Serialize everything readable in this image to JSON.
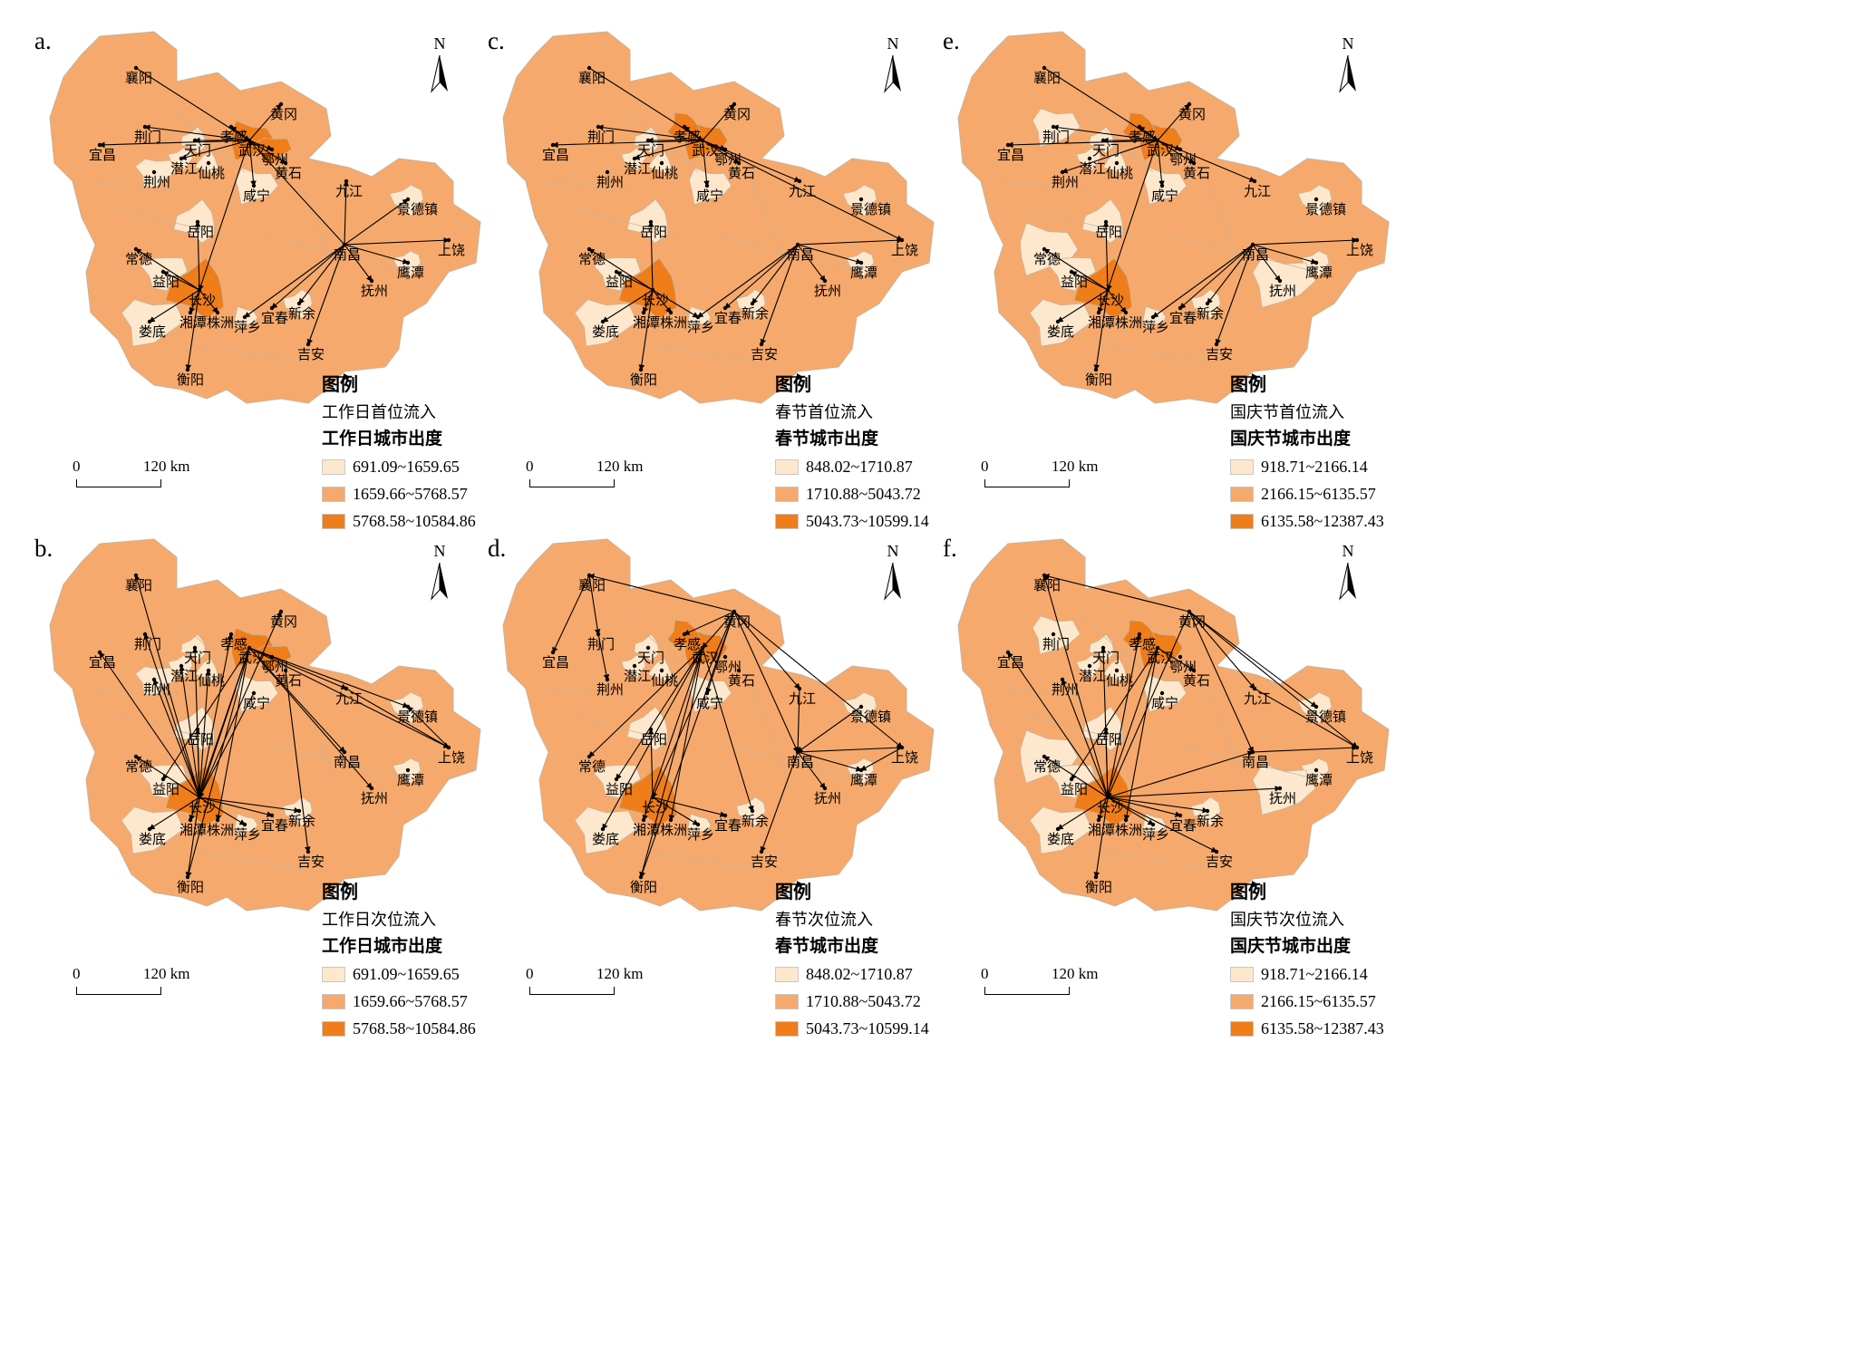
{
  "colors": {
    "low": "#fde8cd",
    "mid": "#f6a96c",
    "high": "#ef7d1a",
    "border": "#c8b49a",
    "flow": "#000000"
  },
  "north_label": "N",
  "scale_bar": {
    "zero": "0",
    "distance": "120 km"
  },
  "legend_title": "图例",
  "cities": [
    {
      "key": "xiangyang",
      "name": "襄阳"
    },
    {
      "key": "huanggang",
      "name": "黄冈"
    },
    {
      "key": "xiaogan",
      "name": "孝感"
    },
    {
      "key": "jingmen",
      "name": "荆门"
    },
    {
      "key": "wuhan",
      "name": "武汉"
    },
    {
      "key": "yichang",
      "name": "宜昌"
    },
    {
      "key": "tianmen",
      "name": "天门"
    },
    {
      "key": "ezhou",
      "name": "鄂州"
    },
    {
      "key": "huangshi",
      "name": "黄石"
    },
    {
      "key": "qianjiang",
      "name": "潜江"
    },
    {
      "key": "xiantao",
      "name": "仙桃"
    },
    {
      "key": "jingzhou",
      "name": "荆州"
    },
    {
      "key": "xianning",
      "name": "咸宁"
    },
    {
      "key": "jiujiang",
      "name": "九江"
    },
    {
      "key": "jingdezhen",
      "name": "景德镇"
    },
    {
      "key": "yueyang",
      "name": "岳阳"
    },
    {
      "key": "changde",
      "name": "常德"
    },
    {
      "key": "nanchang",
      "name": "南昌"
    },
    {
      "key": "shangrao",
      "name": "上饶"
    },
    {
      "key": "yiyang",
      "name": "益阳"
    },
    {
      "key": "yingtan",
      "name": "鹰潭"
    },
    {
      "key": "changsha",
      "name": "长沙"
    },
    {
      "key": "fuzhou",
      "name": "抚州"
    },
    {
      "key": "xinyu",
      "name": "新余"
    },
    {
      "key": "yichun",
      "name": "宜春"
    },
    {
      "key": "loudi",
      "name": "娄底"
    },
    {
      "key": "xiangtan",
      "name": "湘潭"
    },
    {
      "key": "zhuzhou",
      "name": "株洲"
    },
    {
      "key": "pingxiang",
      "name": "萍乡"
    },
    {
      "key": "jian",
      "name": "吉安"
    },
    {
      "key": "hengyang",
      "name": "衡阳"
    }
  ],
  "panels": [
    {
      "id": "a",
      "label": "a.",
      "flow_label": "工作日首位流入",
      "class_title": "工作日城市出度",
      "classes": [
        "691.09~1659.65",
        "1659.66~5768.57",
        "5768.58~10584.86"
      ],
      "low_cities": [
        "tianmen",
        "qianjiang",
        "xiantao",
        "jingzhou",
        "xianning",
        "yueyang",
        "jingdezhen",
        "yingtan",
        "xinyu",
        "pingxiang",
        "yiyang",
        "loudi"
      ],
      "high_cities": [
        "wuhan",
        "changsha",
        "ezhou"
      ],
      "flows": [
        [
          "xiangyang",
          "wuhan"
        ],
        [
          "wuhan",
          "yichang"
        ],
        [
          "wuhan",
          "jingmen"
        ],
        [
          "wuhan",
          "tianmen"
        ],
        [
          "wuhan",
          "qianjiang"
        ],
        [
          "wuhan",
          "xiaogan"
        ],
        [
          "wuhan",
          "huanggang"
        ],
        [
          "wuhan",
          "ezhou"
        ],
        [
          "wuhan",
          "huangshi"
        ],
        [
          "wuhan",
          "xianning"
        ],
        [
          "wuhan",
          "changsha"
        ],
        [
          "nanchang",
          "jiujiang"
        ],
        [
          "nanchang",
          "jingdezhen"
        ],
        [
          "nanchang",
          "shangrao"
        ],
        [
          "nanchang",
          "yingtan"
        ],
        [
          "nanchang",
          "fuzhou"
        ],
        [
          "nanchang",
          "jian"
        ],
        [
          "nanchang",
          "xinyu"
        ],
        [
          "nanchang",
          "yichun"
        ],
        [
          "nanchang",
          "pingxiang"
        ],
        [
          "nanchang",
          "wuhan"
        ],
        [
          "changsha",
          "yueyang"
        ],
        [
          "changsha",
          "yiyang"
        ],
        [
          "changsha",
          "changde"
        ],
        [
          "changsha",
          "hengyang"
        ],
        [
          "changsha",
          "zhuzhou"
        ],
        [
          "changsha",
          "xiangtan"
        ],
        [
          "changsha",
          "loudi"
        ]
      ]
    },
    {
      "id": "c",
      "label": "c.",
      "flow_label": "春节首位流入",
      "class_title": "春节城市出度",
      "classes": [
        "848.02~1710.87",
        "1710.88~5043.72",
        "5043.73~10599.14"
      ],
      "low_cities": [
        "tianmen",
        "qianjiang",
        "xiantao",
        "xianning",
        "yueyang",
        "jingdezhen",
        "yingtan",
        "xinyu",
        "pingxiang",
        "yiyang",
        "loudi"
      ],
      "high_cities": [
        "wuhan",
        "changsha",
        "xiaogan"
      ],
      "flows": [
        [
          "xiangyang",
          "wuhan"
        ],
        [
          "wuhan",
          "yichang"
        ],
        [
          "wuhan",
          "jingmen"
        ],
        [
          "wuhan",
          "tianmen"
        ],
        [
          "wuhan",
          "qianjiang"
        ],
        [
          "wuhan",
          "xiaogan"
        ],
        [
          "wuhan",
          "huanggang"
        ],
        [
          "wuhan",
          "ezhou"
        ],
        [
          "wuhan",
          "huangshi"
        ],
        [
          "wuhan",
          "xianning"
        ],
        [
          "wuhan",
          "jiujiang"
        ],
        [
          "wuhan",
          "shangrao"
        ],
        [
          "nanchang",
          "shangrao"
        ],
        [
          "nanchang",
          "yingtan"
        ],
        [
          "nanchang",
          "fuzhou"
        ],
        [
          "nanchang",
          "jian"
        ],
        [
          "nanchang",
          "xinyu"
        ],
        [
          "nanchang",
          "yichun"
        ],
        [
          "nanchang",
          "pingxiang"
        ],
        [
          "changsha",
          "yueyang"
        ],
        [
          "changsha",
          "yiyang"
        ],
        [
          "changsha",
          "changde"
        ],
        [
          "changsha",
          "hengyang"
        ],
        [
          "changsha",
          "zhuzhou"
        ],
        [
          "changsha",
          "xiangtan"
        ],
        [
          "changsha",
          "loudi"
        ],
        [
          "changsha",
          "pingxiang"
        ]
      ]
    },
    {
      "id": "e",
      "label": "e.",
      "flow_label": "国庆节首位流入",
      "class_title": "国庆节城市出度",
      "classes": [
        "918.71~2166.14",
        "2166.15~6135.57",
        "6135.58~12387.43"
      ],
      "low_cities": [
        "jingmen",
        "tianmen",
        "qianjiang",
        "xiantao",
        "xianning",
        "jingdezhen",
        "yingtan",
        "fuzhou",
        "xinyu",
        "pingxiang",
        "changde",
        "yiyang",
        "loudi",
        "yueyang"
      ],
      "high_cities": [
        "wuhan",
        "changsha",
        "xiaogan"
      ],
      "flows": [
        [
          "xiangyang",
          "wuhan"
        ],
        [
          "wuhan",
          "yichang"
        ],
        [
          "wuhan",
          "jingmen"
        ],
        [
          "wuhan",
          "tianmen"
        ],
        [
          "wuhan",
          "xiaogan"
        ],
        [
          "wuhan",
          "huanggang"
        ],
        [
          "wuhan",
          "ezhou"
        ],
        [
          "wuhan",
          "huangshi"
        ],
        [
          "wuhan",
          "xianning"
        ],
        [
          "wuhan",
          "jiujiang"
        ],
        [
          "wuhan",
          "jingzhou"
        ],
        [
          "wuhan",
          "changsha"
        ],
        [
          "nanchang",
          "shangrao"
        ],
        [
          "nanchang",
          "yingtan"
        ],
        [
          "nanchang",
          "fuzhou"
        ],
        [
          "nanchang",
          "jian"
        ],
        [
          "nanchang",
          "xinyu"
        ],
        [
          "nanchang",
          "yichun"
        ],
        [
          "nanchang",
          "pingxiang"
        ],
        [
          "changsha",
          "yueyang"
        ],
        [
          "changsha",
          "yiyang"
        ],
        [
          "changsha",
          "changde"
        ],
        [
          "changsha",
          "hengyang"
        ],
        [
          "changsha",
          "zhuzhou"
        ],
        [
          "changsha",
          "xiangtan"
        ],
        [
          "changsha",
          "loudi"
        ]
      ]
    },
    {
      "id": "b",
      "label": "b.",
      "flow_label": "工作日次位流入",
      "class_title": "工作日城市出度",
      "classes": [
        "691.09~1659.65",
        "1659.66~5768.57",
        "5768.58~10584.86"
      ],
      "low_cities": [
        "tianmen",
        "qianjiang",
        "xiantao",
        "jingzhou",
        "xianning",
        "yueyang",
        "jingdezhen",
        "yingtan",
        "xinyu",
        "pingxiang",
        "yiyang",
        "loudi"
      ],
      "high_cities": [
        "wuhan",
        "changsha",
        "ezhou"
      ],
      "flows": [
        [
          "changsha",
          "xiangyang"
        ],
        [
          "changsha",
          "jingmen"
        ],
        [
          "changsha",
          "yichang"
        ],
        [
          "changsha",
          "tianmen"
        ],
        [
          "changsha",
          "qianjiang"
        ],
        [
          "changsha",
          "jingzhou"
        ],
        [
          "changsha",
          "xiantao"
        ],
        [
          "changsha",
          "yueyang"
        ],
        [
          "changsha",
          "changde"
        ],
        [
          "changsha",
          "loudi"
        ],
        [
          "changsha",
          "hengyang"
        ],
        [
          "changsha",
          "xiaogan"
        ],
        [
          "changsha",
          "huanggang"
        ],
        [
          "wuhan",
          "changsha"
        ],
        [
          "wuhan",
          "yiyang"
        ],
        [
          "wuhan",
          "hengyang"
        ],
        [
          "wuhan",
          "zhuzhou"
        ],
        [
          "wuhan",
          "xiangtan"
        ],
        [
          "wuhan",
          "nanchang"
        ],
        [
          "wuhan",
          "jiujiang"
        ],
        [
          "wuhan",
          "shangrao"
        ],
        [
          "wuhan",
          "fuzhou"
        ],
        [
          "wuhan",
          "jingdezhen"
        ],
        [
          "huangshi",
          "jian"
        ],
        [
          "xianning",
          "changsha"
        ],
        [
          "jiujiang",
          "shangrao"
        ],
        [
          "shangrao",
          "jingdezhen"
        ],
        [
          "changsha",
          "xinyu"
        ],
        [
          "changsha",
          "yichun"
        ],
        [
          "changsha",
          "pingxiang"
        ]
      ]
    },
    {
      "id": "d",
      "label": "d.",
      "flow_label": "春节次位流入",
      "class_title": "春节城市出度",
      "classes": [
        "848.02~1710.87",
        "1710.88~5043.72",
        "5043.73~10599.14"
      ],
      "low_cities": [
        "tianmen",
        "qianjiang",
        "xiantao",
        "xianning",
        "yueyang",
        "jingdezhen",
        "yingtan",
        "xinyu",
        "pingxiang",
        "yiyang",
        "loudi"
      ],
      "high_cities": [
        "wuhan",
        "changsha",
        "xiaogan"
      ],
      "flows": [
        [
          "huanggang",
          "xiangyang"
        ],
        [
          "xiangyang",
          "yichang"
        ],
        [
          "xiangyang",
          "jingmen"
        ],
        [
          "huanggang",
          "xiaogan"
        ],
        [
          "huanggang",
          "wuhan"
        ],
        [
          "huanggang",
          "nanchang"
        ],
        [
          "huanggang",
          "jiujiang"
        ],
        [
          "huanggang",
          "shangrao"
        ],
        [
          "huanggang",
          "hengyang"
        ],
        [
          "huanggang",
          "changsha"
        ],
        [
          "huanggang",
          "xianning"
        ],
        [
          "wuhan",
          "changde"
        ],
        [
          "wuhan",
          "yiyang"
        ],
        [
          "wuhan",
          "hengyang"
        ],
        [
          "wuhan",
          "loudi"
        ],
        [
          "wuhan",
          "xiangtan"
        ],
        [
          "wuhan",
          "zhuzhou"
        ],
        [
          "wuhan",
          "xinyu"
        ],
        [
          "jiujiang",
          "nanchang"
        ],
        [
          "nanchang",
          "shangrao"
        ],
        [
          "nanchang",
          "fuzhou"
        ],
        [
          "nanchang",
          "yingtan"
        ],
        [
          "nanchang",
          "jian"
        ],
        [
          "jingmen",
          "jingzhou"
        ],
        [
          "changsha",
          "yueyang"
        ],
        [
          "changsha",
          "pingxiang"
        ],
        [
          "changsha",
          "yichun"
        ],
        [
          "jingdezhen",
          "nanchang"
        ],
        [
          "shangrao",
          "yingtan"
        ]
      ]
    },
    {
      "id": "f",
      "label": "f.",
      "flow_label": "国庆节次位流入",
      "class_title": "国庆节城市出度",
      "classes": [
        "918.71~2166.14",
        "2166.15~6135.57",
        "6135.58~12387.43"
      ],
      "low_cities": [
        "jingmen",
        "tianmen",
        "qianjiang",
        "xiantao",
        "xianning",
        "jingdezhen",
        "yingtan",
        "fuzhou",
        "xinyu",
        "pingxiang",
        "changde",
        "yiyang",
        "loudi",
        "yueyang"
      ],
      "high_cities": [
        "wuhan",
        "changsha",
        "xiaogan"
      ],
      "flows": [
        [
          "huanggang",
          "xiangyang"
        ],
        [
          "changsha",
          "xiangyang"
        ],
        [
          "changsha",
          "yichang"
        ],
        [
          "changsha",
          "jingzhou"
        ],
        [
          "changsha",
          "tianmen"
        ],
        [
          "changsha",
          "xiaogan"
        ],
        [
          "changsha",
          "yueyang"
        ],
        [
          "changsha",
          "changde"
        ],
        [
          "changsha",
          "loudi"
        ],
        [
          "changsha",
          "hengyang"
        ],
        [
          "changsha",
          "fuzhou"
        ],
        [
          "changsha",
          "yichun"
        ],
        [
          "changsha",
          "xinyu"
        ],
        [
          "changsha",
          "pingxiang"
        ],
        [
          "changsha",
          "jian"
        ],
        [
          "changsha",
          "nanchang"
        ],
        [
          "huanggang",
          "changsha"
        ],
        [
          "huanggang",
          "nanchang"
        ],
        [
          "huanggang",
          "jiujiang"
        ],
        [
          "huanggang",
          "shangrao"
        ],
        [
          "huanggang",
          "jingdezhen"
        ],
        [
          "wuhan",
          "yiyang"
        ],
        [
          "wuhan",
          "zhuzhou"
        ],
        [
          "wuhan",
          "xiangtan"
        ],
        [
          "wuhan",
          "huangshi"
        ],
        [
          "jiujiang",
          "shangrao"
        ],
        [
          "nanchang",
          "shangrao"
        ]
      ]
    }
  ]
}
